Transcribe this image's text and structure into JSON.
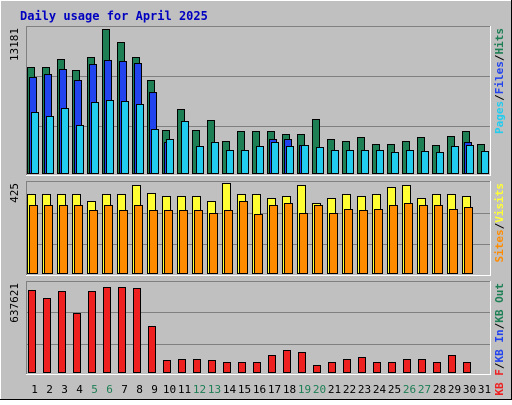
{
  "title": "Daily usage for April 2025",
  "colors": {
    "title": "#0000c0",
    "background": "#c0c0c0",
    "hits": "#1e7f55",
    "files": "#2244ee",
    "pages": "#22ccee",
    "visits": "#ffff33",
    "sites": "#ff8c00",
    "kbf": "#ee2020",
    "weekend_label": "#1e7f55",
    "weekday_label": "#000000"
  },
  "chart_data": [
    {
      "type": "bar",
      "panel": "hits-files-pages",
      "ymax_label": "13181",
      "ylim": [
        0,
        13181
      ],
      "grid": true,
      "categories": [
        "1",
        "2",
        "3",
        "4",
        "5",
        "6",
        "7",
        "8",
        "9",
        "10",
        "11",
        "12",
        "13",
        "14",
        "15",
        "16",
        "17",
        "18",
        "19",
        "20",
        "21",
        "22",
        "23",
        "24",
        "25",
        "26",
        "27",
        "28",
        "29",
        "30",
        "31"
      ],
      "weekend_days": [
        5,
        6,
        12,
        13,
        19,
        20,
        26,
        27
      ],
      "legend": [
        {
          "label": "Pages",
          "color_key": "pages"
        },
        {
          "label": "Files",
          "color_key": "files"
        },
        {
          "label": "Hits",
          "color_key": "hits"
        }
      ],
      "series": [
        {
          "name": "Hits",
          "color_key": "hits",
          "values": [
            9700,
            9700,
            10400,
            9400,
            10600,
            13100,
            11900,
            10600,
            8500,
            4000,
            5900,
            4000,
            4900,
            3000,
            3900,
            3900,
            3900,
            3600,
            3600,
            5000,
            3200,
            3000,
            3300,
            2700,
            2700,
            3000,
            3300,
            2600,
            3400,
            3900,
            2700
          ]
        },
        {
          "name": "Files",
          "color_key": "files",
          "values": [
            8800,
            9000,
            9500,
            8500,
            9900,
            10300,
            10200,
            10000,
            7400,
            2900,
            0,
            0,
            0,
            0,
            0,
            0,
            3200,
            3200,
            2600,
            0,
            0,
            0,
            0,
            0,
            0,
            0,
            0,
            0,
            0,
            2900,
            0
          ]
        },
        {
          "name": "Pages",
          "color_key": "pages",
          "values": [
            5600,
            5200,
            6000,
            4400,
            6500,
            6700,
            6600,
            6300,
            4100,
            3200,
            4800,
            2500,
            2900,
            2200,
            2200,
            2500,
            2900,
            2500,
            2600,
            2400,
            2200,
            2200,
            2200,
            2200,
            2000,
            2200,
            2100,
            2000,
            2500,
            2600,
            2100
          ]
        }
      ]
    },
    {
      "type": "bar",
      "panel": "visits-sites",
      "ymax_label": "425",
      "ylim": [
        0,
        425
      ],
      "grid": true,
      "legend": [
        {
          "label": "Sites",
          "color_key": "sites"
        },
        {
          "label": "Visits",
          "color_key": "visits"
        }
      ],
      "series": [
        {
          "name": "Visits",
          "color_key": "visits",
          "values": [
            375,
            375,
            375,
            375,
            340,
            375,
            375,
            415,
            380,
            365,
            365,
            365,
            340,
            425,
            375,
            375,
            355,
            365,
            415,
            330,
            355,
            375,
            365,
            375,
            405,
            415,
            355,
            375,
            375,
            365,
            0
          ]
        },
        {
          "name": "Sites",
          "color_key": "sites",
          "values": [
            320,
            320,
            320,
            320,
            300,
            320,
            300,
            320,
            300,
            300,
            300,
            300,
            285,
            300,
            340,
            280,
            320,
            330,
            285,
            320,
            285,
            305,
            300,
            305,
            320,
            330,
            320,
            320,
            305,
            315,
            0
          ]
        }
      ]
    },
    {
      "type": "bar",
      "panel": "kb",
      "ymax_label": "637621",
      "ylim": [
        0,
        637621
      ],
      "grid": true,
      "legend": [
        {
          "label": "KB F",
          "color_key": "kbf"
        },
        {
          "label": "KB In",
          "color_key": "files"
        },
        {
          "label": "KB Out",
          "color_key": "hits"
        }
      ],
      "series": [
        {
          "name": "KB F",
          "color_key": "kbf",
          "values": [
            590000,
            530000,
            580000,
            425000,
            580000,
            610000,
            610000,
            600000,
            330000,
            90000,
            100000,
            100000,
            90000,
            80000,
            80000,
            80000,
            130000,
            160000,
            150000,
            60000,
            80000,
            100000,
            110000,
            80000,
            80000,
            100000,
            100000,
            80000,
            130000,
            80000,
            0
          ]
        }
      ]
    }
  ]
}
